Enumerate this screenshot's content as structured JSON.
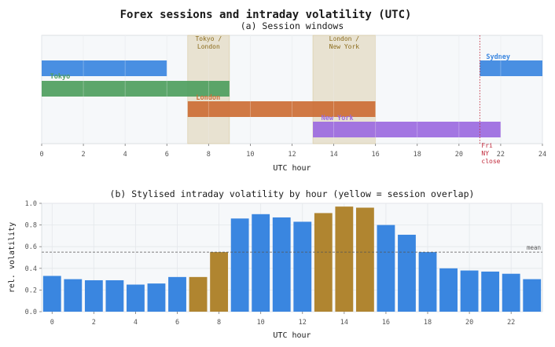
{
  "title": "Forex sessions and intraday volatility (UTC)",
  "chart_data": [
    {
      "type": "bar",
      "subtype": "gantt",
      "title": "(a)  Session windows",
      "xlabel": "UTC hour",
      "xlim": [
        0,
        24
      ],
      "xticks": [
        0,
        2,
        4,
        6,
        8,
        10,
        12,
        14,
        16,
        18,
        20,
        22,
        24
      ],
      "grid": true,
      "overlaps": [
        {
          "label_line1": "Tokyo /",
          "label_line2": "London",
          "start": 7,
          "end": 9
        },
        {
          "label_line1": "London /",
          "label_line2": "New York",
          "start": 13,
          "end": 16
        }
      ],
      "sessions": [
        {
          "name": "Sydney",
          "segments": [
            [
              0,
              6
            ],
            [
              21,
              24
            ]
          ],
          "row": 0,
          "color": "#3a86e0",
          "label_at": 21.3
        },
        {
          "name": "Tokyo",
          "segments": [
            [
              0,
              9
            ]
          ],
          "row": 1,
          "color": "#4e9e5e",
          "label_at": 0.4
        },
        {
          "name": "London",
          "segments": [
            [
              7,
              16
            ]
          ],
          "row": 2,
          "color": "#cc6e35",
          "label_at": 7.4
        },
        {
          "name": "New York",
          "segments": [
            [
              13,
              22
            ]
          ],
          "row": 3,
          "color": "#9b6adf",
          "label_at": 13.4
        }
      ],
      "annotation": {
        "x": 21,
        "lines": [
          "Fri",
          "NY",
          "close"
        ],
        "color": "#c0283a"
      }
    },
    {
      "type": "bar",
      "title": "(b)  Stylised intraday volatility by hour  (yellow = session overlap)",
      "xlabel": "UTC hour",
      "ylabel": "rel. volatility",
      "xlim": [
        -0.5,
        23.5
      ],
      "ylim": [
        0,
        1.0
      ],
      "xticks": [
        0,
        2,
        4,
        6,
        8,
        10,
        12,
        14,
        16,
        18,
        20,
        22
      ],
      "yticks": [
        "0.0",
        "0.2",
        "0.4",
        "0.6",
        "0.8",
        "1.0"
      ],
      "grid": true,
      "x": [
        0,
        1,
        2,
        3,
        4,
        5,
        6,
        7,
        8,
        9,
        10,
        11,
        12,
        13,
        14,
        15,
        16,
        17,
        18,
        19,
        20,
        21,
        22,
        23
      ],
      "values": [
        0.33,
        0.3,
        0.29,
        0.29,
        0.25,
        0.26,
        0.32,
        0.32,
        0.55,
        0.86,
        0.9,
        0.87,
        0.83,
        0.91,
        0.97,
        0.96,
        0.8,
        0.71,
        0.55,
        0.4,
        0.38,
        0.37,
        0.35,
        0.3
      ],
      "overlap_hours": [
        7,
        8,
        13,
        14,
        15
      ],
      "normal_color": "#3a86e0",
      "overlap_color": "#b08530",
      "mean": 0.55,
      "mean_label": "mean"
    }
  ]
}
